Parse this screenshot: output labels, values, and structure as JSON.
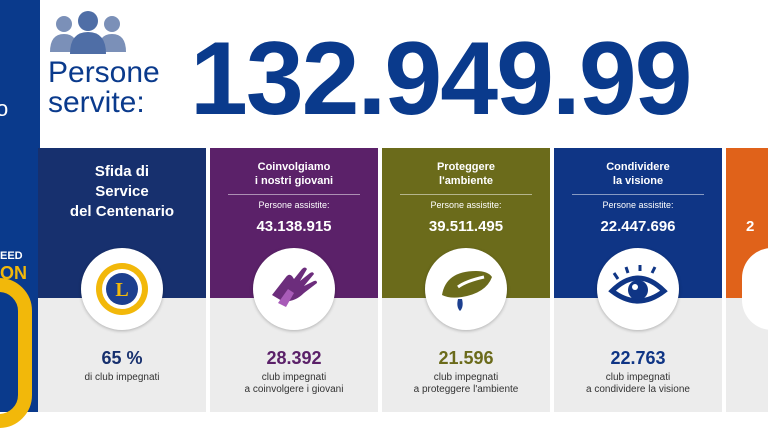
{
  "sidebar": {
    "fragment_o": "o",
    "fragment_eed": "EED",
    "fragment_on": "ON"
  },
  "header": {
    "label_line1": "Persone",
    "label_line2": "servite:",
    "big_number": "132.949.99",
    "icon": "people-group-icon"
  },
  "panels": [
    {
      "title_lines": [
        "Sfida di",
        "Service",
        "del Centenario"
      ],
      "icon": "lions-logo",
      "value": "65 %",
      "caption": "di club impegnati",
      "color": "#17306e"
    },
    {
      "title_lines": [
        "Coinvolgiamo",
        "i nostri giovani"
      ],
      "sub": "Persone assistite:",
      "served": "43.138.915",
      "icon": "hands-icon",
      "value": "28.392",
      "caption_lines": [
        "club impegnati",
        "a coinvolgere i giovani"
      ],
      "color": "#5b2169"
    },
    {
      "title_lines": [
        "Proteggere",
        "l'ambiente"
      ],
      "sub": "Persone assistite:",
      "served": "39.511.495",
      "icon": "leaf-icon",
      "value": "21.596",
      "caption_lines": [
        "club impegnati",
        "a proteggere l'ambiente"
      ],
      "color": "#6b6b1b"
    },
    {
      "title_lines": [
        "Condividere",
        "la visione"
      ],
      "sub": "Persone assistite:",
      "served": "22.447.696",
      "icon": "eye-icon",
      "value": "22.763",
      "caption_lines": [
        "club impegnati",
        "a condividere la visione"
      ],
      "color": "#0f3585"
    },
    {
      "served_fragment": "2",
      "color": "#e0621a"
    }
  ]
}
